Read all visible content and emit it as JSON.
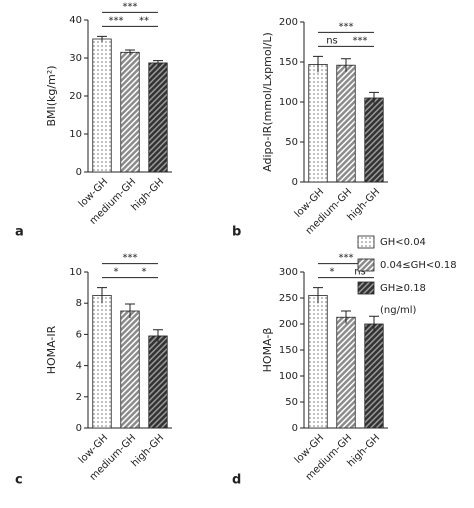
{
  "chart_data": [
    {
      "type": "bar",
      "label": "a",
      "ylabel": "BMI(kg/m²)",
      "categories": [
        "low-GH",
        "medium-GH",
        "high-GH"
      ],
      "values": [
        35,
        31.5,
        28.7
      ],
      "errors": [
        0.7,
        0.6,
        0.6
      ],
      "ylim": [
        0,
        40
      ],
      "yticks": [
        0,
        10,
        20,
        30,
        40
      ],
      "significance": [
        "***",
        "***",
        "**"
      ]
    },
    {
      "type": "bar",
      "label": "b",
      "ylabel": "Adipo-IR(mmol/Lxpmol/L)",
      "categories": [
        "low-GH",
        "medium-GH",
        "high-GH"
      ],
      "values": [
        147,
        146,
        105
      ],
      "errors": [
        10,
        8,
        7
      ],
      "ylim": [
        0,
        200
      ],
      "yticks": [
        0,
        50,
        100,
        150,
        200
      ],
      "significance": [
        "ns",
        "***",
        "***"
      ]
    },
    {
      "type": "bar",
      "label": "c",
      "ylabel": "HOMA-IR",
      "categories": [
        "low-GH",
        "medium-GH",
        "high-GH"
      ],
      "values": [
        8.5,
        7.5,
        5.9
      ],
      "errors": [
        0.5,
        0.45,
        0.4
      ],
      "ylim": [
        0,
        10
      ],
      "yticks": [
        0,
        2,
        4,
        6,
        8,
        10
      ],
      "significance": [
        "*",
        "***",
        "*"
      ]
    },
    {
      "type": "bar",
      "label": "d",
      "ylabel": "HOMA-β",
      "categories": [
        "low-GH",
        "medium-GH",
        "high-GH"
      ],
      "values": [
        255,
        213,
        200
      ],
      "errors": [
        15,
        12,
        15
      ],
      "ylim": [
        0,
        300
      ],
      "yticks": [
        0,
        50,
        100,
        150,
        200,
        250,
        300
      ],
      "significance": [
        "*",
        "***",
        "ns"
      ]
    }
  ],
  "legend": {
    "entries": [
      "GH<0.04",
      "0.04≤GH<0.18",
      "GH≥0.18"
    ],
    "note": "(ng/ml)",
    "colors": [
      "#d9d9d9",
      "#8c8c8c",
      "#333333"
    ]
  }
}
